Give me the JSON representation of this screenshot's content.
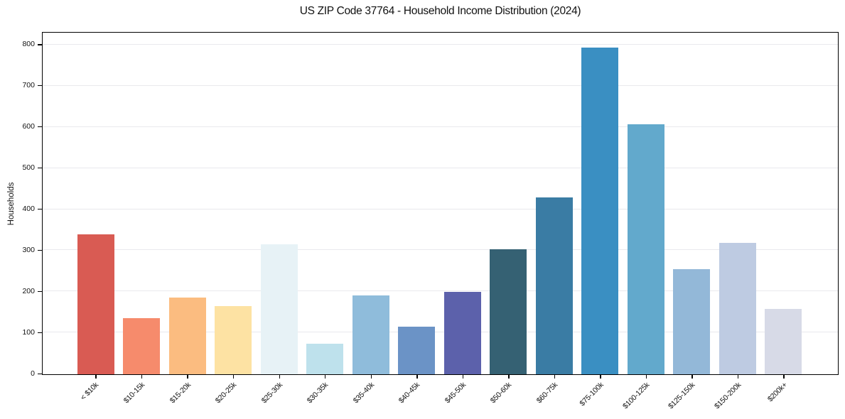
{
  "chart_data": {
    "type": "bar",
    "title": "US ZIP Code 37764 - Household Income Distribution (2024)",
    "xlabel": "",
    "ylabel": "Households",
    "categories": [
      "< $10k",
      "$10-15k",
      "$15-20k",
      "$20-25k",
      "$25-30k",
      "$30-35k",
      "$35-40k",
      "$40-45k",
      "$45-50k",
      "$50-60k",
      "$60-75k",
      "$75-100k",
      "$100-125k",
      "$125-150k",
      "$150-200k",
      "$200k+"
    ],
    "values": [
      340,
      136,
      186,
      165,
      315,
      74,
      191,
      115,
      200,
      304,
      429,
      793,
      607,
      256,
      319,
      158
    ],
    "bar_colors": [
      "#d95b53",
      "#f68b6c",
      "#fbbc80",
      "#fde2a3",
      "#e7f2f6",
      "#bee1ec",
      "#8fbcdb",
      "#6b93c6",
      "#5c61ab",
      "#356173",
      "#3a7ca4",
      "#3a8fc2",
      "#62a9cc",
      "#93b8d8",
      "#becbe2",
      "#d7dae7"
    ],
    "yticks": [
      0,
      100,
      200,
      300,
      400,
      500,
      600,
      700,
      800
    ],
    "ylim": [
      0,
      828
    ],
    "grid": "horizontal",
    "gridline_color": "#e9e9ed",
    "axis_color": "#000000",
    "background_color": "#ffffff",
    "legend": "none"
  }
}
